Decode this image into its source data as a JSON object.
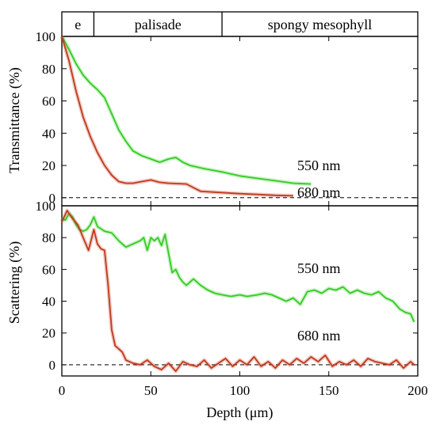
{
  "chart_data": [
    {
      "type": "line",
      "ylabel": "Transmittance (%)",
      "xlim": [
        0,
        200
      ],
      "ylim": [
        -5,
        100
      ],
      "yticks": [
        0,
        20,
        40,
        60,
        80,
        100
      ],
      "grid": false,
      "reference_line": {
        "y": 0,
        "style": "dashed"
      },
      "tissue_bands": [
        {
          "label": "e",
          "from": 0,
          "to": 18
        },
        {
          "label": "palisade",
          "from": 18,
          "to": 90
        },
        {
          "label": "spongy mesophyll",
          "from": 90,
          "to": 200
        }
      ],
      "series": [
        {
          "name": "550 nm",
          "color": "#33cc22",
          "x": [
            0,
            4,
            8,
            12,
            16,
            20,
            24,
            28,
            32,
            36,
            40,
            45,
            50,
            55,
            60,
            64,
            68,
            72,
            80,
            90,
            100,
            110,
            120,
            130,
            140
          ],
          "y": [
            100,
            92,
            83,
            76,
            71,
            67,
            62,
            52,
            42,
            35,
            29,
            26,
            24,
            22,
            24,
            25,
            22,
            20,
            18,
            16,
            13.5,
            12,
            10.5,
            9,
            8.5
          ]
        },
        {
          "name": "680 nm",
          "color": "#c0391b",
          "x": [
            0,
            4,
            8,
            12,
            16,
            20,
            24,
            28,
            32,
            36,
            40,
            45,
            50,
            55,
            60,
            70,
            78,
            85,
            100,
            110,
            120,
            130
          ],
          "y": [
            100,
            85,
            66,
            50,
            38,
            28,
            20,
            14,
            10,
            9,
            9,
            10,
            11,
            9.5,
            9,
            8.5,
            4,
            3.5,
            2.5,
            2,
            1.5,
            1.2
          ]
        }
      ],
      "annotations": [
        "550 nm",
        "680 nm"
      ]
    },
    {
      "type": "line",
      "ylabel": "Scattering (%)",
      "xlabel": "Depth (μm)",
      "xlim": [
        0,
        200
      ],
      "ylim": [
        -7,
        100
      ],
      "xticks": [
        0,
        50,
        100,
        150,
        200
      ],
      "yticks": [
        0,
        20,
        40,
        60,
        80,
        100
      ],
      "grid": false,
      "reference_line": {
        "y": 0,
        "style": "dashed"
      },
      "series": [
        {
          "name": "550 nm",
          "color": "#33cc22",
          "x": [
            0,
            2,
            4,
            6,
            8,
            10,
            12,
            14,
            16,
            18,
            20,
            24,
            28,
            32,
            36,
            40,
            44,
            46,
            48,
            50,
            52,
            54,
            56,
            58,
            60,
            62,
            64,
            66,
            68,
            70,
            72,
            74,
            78,
            82,
            86,
            90,
            95,
            100,
            104,
            110,
            114,
            118,
            122,
            126,
            130,
            134,
            138,
            142,
            146,
            150,
            154,
            158,
            162,
            166,
            170,
            174,
            178,
            182,
            186,
            190,
            193,
            196,
            198
          ],
          "y": [
            92,
            91,
            95,
            93,
            88,
            85,
            84,
            85,
            88,
            93,
            87,
            84,
            83,
            78,
            74,
            76,
            78,
            80,
            72,
            80,
            78,
            80,
            75,
            82,
            70,
            58,
            60,
            55,
            52,
            50,
            52,
            54,
            50,
            47,
            45,
            44,
            43,
            44,
            43,
            44,
            45,
            44,
            42,
            40,
            42,
            38,
            46,
            47,
            45,
            48,
            47,
            49,
            45,
            47,
            45,
            44,
            46,
            42,
            40,
            35,
            33,
            32,
            27
          ]
        },
        {
          "name": "680 nm",
          "color": "#c0391b",
          "x": [
            0,
            3,
            6,
            9,
            12,
            15,
            18,
            20,
            22,
            24,
            26,
            28,
            30,
            32,
            34,
            36,
            38,
            40,
            44,
            48,
            52,
            56,
            60,
            64,
            68,
            72,
            76,
            80,
            84,
            88,
            92,
            96,
            100,
            104,
            108,
            112,
            116,
            120,
            124,
            128,
            132,
            136,
            140,
            144,
            148,
            152,
            156,
            160,
            164,
            168,
            172,
            176,
            180,
            184,
            188,
            192,
            196,
            198
          ],
          "y": [
            90,
            97,
            92,
            88,
            80,
            72,
            85,
            76,
            73,
            72,
            50,
            22,
            12,
            10,
            8,
            3,
            2,
            1,
            0,
            3,
            -1,
            -3,
            1,
            -4,
            2,
            0,
            -1,
            3,
            -2,
            1,
            4,
            -1,
            3,
            0,
            5,
            -1,
            2,
            -2,
            3,
            0,
            4,
            1,
            5,
            2,
            6,
            -1,
            2,
            0,
            3,
            -1,
            4,
            2,
            1,
            0,
            3,
            -2,
            2,
            0
          ]
        }
      ],
      "annotations": [
        "550 nm",
        "680 nm"
      ]
    }
  ]
}
